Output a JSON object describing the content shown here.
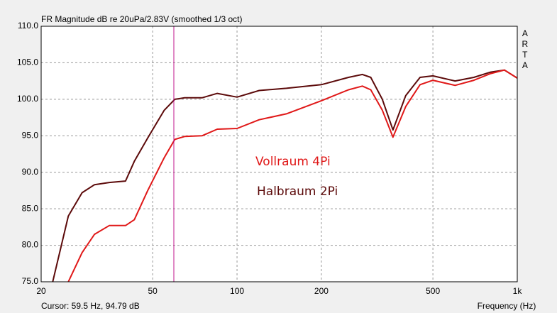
{
  "chart_data": {
    "type": "line",
    "title": "FR Magnitude dB re 20uPa/2.83V (smoothed 1/3 oct)",
    "x_label": "Frequency (Hz)",
    "brand": "ARTA",
    "cursor": {
      "x": 59.5,
      "label": "Cursor: 59.5 Hz, 94.79 dB",
      "color": "#c0148c"
    },
    "log_x": true,
    "grid": true,
    "xlim": [
      20,
      1000
    ],
    "xticks": [
      20,
      50,
      100,
      200,
      500,
      {
        "value": 1000,
        "label": "1k"
      }
    ],
    "ylim": [
      75,
      110
    ],
    "yticks": [
      {
        "value": 75,
        "label": "75.0"
      },
      {
        "value": 80,
        "label": "80.0"
      },
      {
        "value": 85,
        "label": "85.0"
      },
      {
        "value": 90,
        "label": "90.0"
      },
      {
        "value": 95,
        "label": "95.0"
      },
      {
        "value": 100,
        "label": "100.0"
      },
      {
        "value": 105,
        "label": "105.0"
      },
      {
        "value": 110,
        "label": "110.0"
      }
    ],
    "x": [
      22,
      25,
      28,
      31,
      35,
      40,
      43,
      48,
      55,
      60,
      65,
      75,
      85,
      100,
      120,
      150,
      200,
      250,
      280,
      300,
      330,
      360,
      400,
      450,
      500,
      600,
      700,
      800,
      900,
      1000
    ],
    "series": [
      {
        "name": "Halbraum 2Pi",
        "color": "#5c0a0a",
        "values": [
          75,
          84,
          87.2,
          88.3,
          88.6,
          88.8,
          91.5,
          94.7,
          98.5,
          100,
          100.2,
          100.2,
          100.8,
          100.3,
          101.2,
          101.5,
          102,
          103,
          103.4,
          103,
          100,
          95.8,
          100.5,
          103,
          103.2,
          102.5,
          103,
          103.7,
          104,
          102.9
        ]
      },
      {
        "name": "Vollraum 4Pi",
        "color": "#e01818",
        "values": [
          null,
          75,
          79,
          81.5,
          82.7,
          82.7,
          83.5,
          87.5,
          92,
          94.5,
          94.9,
          95,
          95.9,
          96,
          97.2,
          98,
          99.8,
          101.3,
          101.8,
          101.3,
          98.5,
          94.8,
          99,
          102,
          102.6,
          101.9,
          102.6,
          103.5,
          104,
          102.9
        ]
      }
    ]
  }
}
